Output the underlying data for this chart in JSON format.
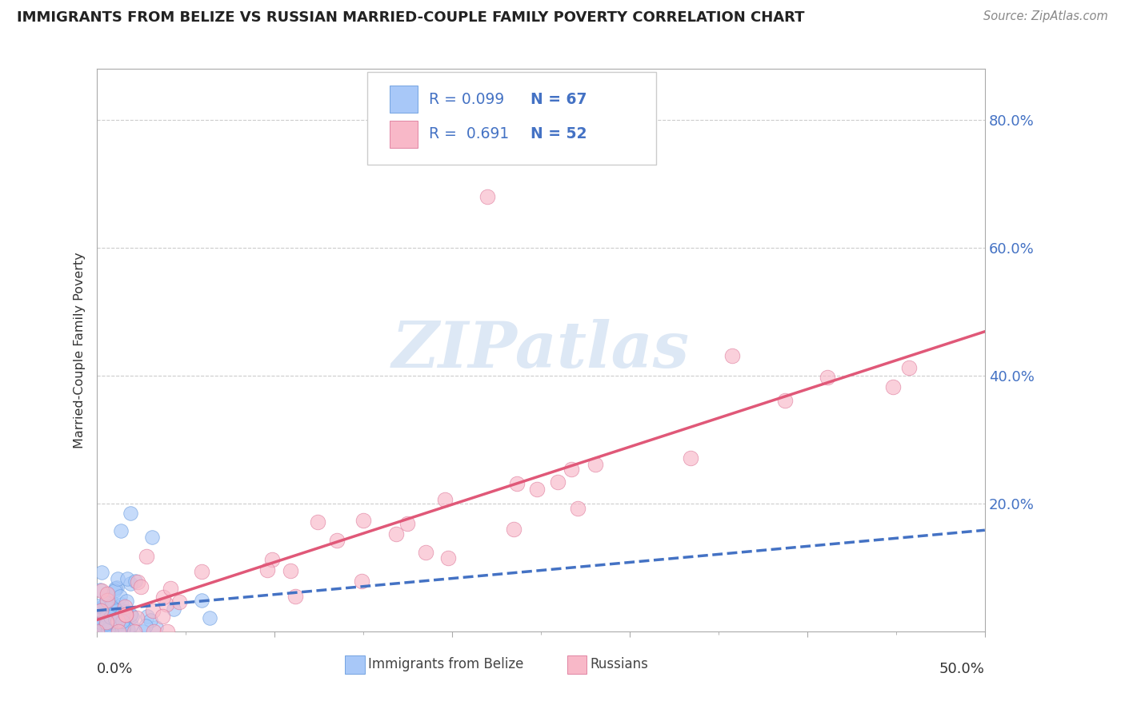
{
  "title": "IMMIGRANTS FROM BELIZE VS RUSSIAN MARRIED-COUPLE FAMILY POVERTY CORRELATION CHART",
  "source": "Source: ZipAtlas.com",
  "ylabel": "Married-Couple Family Poverty",
  "ytick_values": [
    0.2,
    0.4,
    0.6,
    0.8
  ],
  "ytick_labels": [
    "20.0%",
    "40.0%",
    "60.0%",
    "80.0%"
  ],
  "xlim": [
    0.0,
    0.5
  ],
  "ylim": [
    0.0,
    0.88
  ],
  "color_belize": "#a8c8f8",
  "color_belize_edge": "#6699dd",
  "color_russian": "#f8b8c8",
  "color_russian_edge": "#dd7799",
  "color_belize_line": "#4472c4",
  "color_russian_line": "#e05878",
  "watermark_color": "#dde8f5",
  "legend_R_belize": "R = 0.099",
  "legend_N_belize": "N = 67",
  "legend_R_russian": "R =  0.691",
  "legend_N_russian": "N = 52",
  "legend_label_belize": "Immigrants from Belize",
  "legend_label_russian": "Russians",
  "grid_color": "#cccccc",
  "spine_color": "#aaaaaa",
  "title_color": "#222222",
  "source_color": "#888888",
  "axis_label_color": "#333333",
  "tick_label_color": "#4472c4"
}
